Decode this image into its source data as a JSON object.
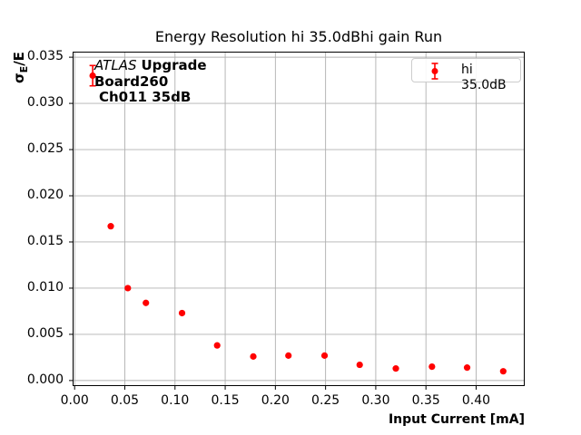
{
  "title": "Energy Resolution hi 35.0dBhi gain Run",
  "axes": {
    "xlabel": "Input Current [mA]",
    "ylabel_sigma": "σ",
    "ylabel_sub": "E",
    "ylabel_rest": "/E"
  },
  "annotation": {
    "experiment": "ATLAS",
    "line1_rest": "Upgrade",
    "line2": "Board260",
    "line3": "Ch011 35dB"
  },
  "legend": {
    "label": "hi 35.0dB",
    "marker": "red-errorbar-point"
  },
  "colors": {
    "accent_red": "#ff0000",
    "grid": "#b0b0b0",
    "spine": "#000000",
    "legend_border": "#cccccc",
    "text": "#000000",
    "background": "#ffffff"
  },
  "chart_data": {
    "type": "scatter",
    "title": "Energy Resolution hi 35.0dBhi gain Run",
    "xlabel": "Input Current [mA]",
    "ylabel": "σ_E/E",
    "xlim": [
      -0.002,
      0.4484
    ],
    "ylim": [
      -0.0006,
      0.0356
    ],
    "xticks": [
      0.0,
      0.05,
      0.1,
      0.15,
      0.2,
      0.25,
      0.3,
      0.35,
      0.4
    ],
    "xtick_labels": [
      "0.00",
      "0.05",
      "0.10",
      "0.15",
      "0.20",
      "0.25",
      "0.30",
      "0.35",
      "0.40"
    ],
    "yticks": [
      0.0,
      0.005,
      0.01,
      0.015,
      0.02,
      0.025,
      0.03,
      0.035
    ],
    "ytick_labels": [
      "0.000",
      "0.005",
      "0.010",
      "0.015",
      "0.020",
      "0.025",
      "0.030",
      "0.035"
    ],
    "grid": true,
    "legend_position": "upper right",
    "series": [
      {
        "name": "hi 35.0dB",
        "color": "#ff0000",
        "marker": "circle-with-errorbar",
        "x": [
          0.018,
          0.036,
          0.053,
          0.071,
          0.107,
          0.142,
          0.178,
          0.213,
          0.249,
          0.284,
          0.32,
          0.356,
          0.391,
          0.427
        ],
        "y": [
          0.033,
          0.0167,
          0.01,
          0.0084,
          0.0073,
          0.0038,
          0.0026,
          0.0027,
          0.0027,
          0.0017,
          0.0013,
          0.0015,
          0.0014,
          0.001
        ],
        "yerr": [
          0.0011,
          0,
          0,
          0,
          0,
          0,
          0,
          0,
          0,
          0,
          0,
          0,
          0,
          0
        ]
      }
    ]
  }
}
